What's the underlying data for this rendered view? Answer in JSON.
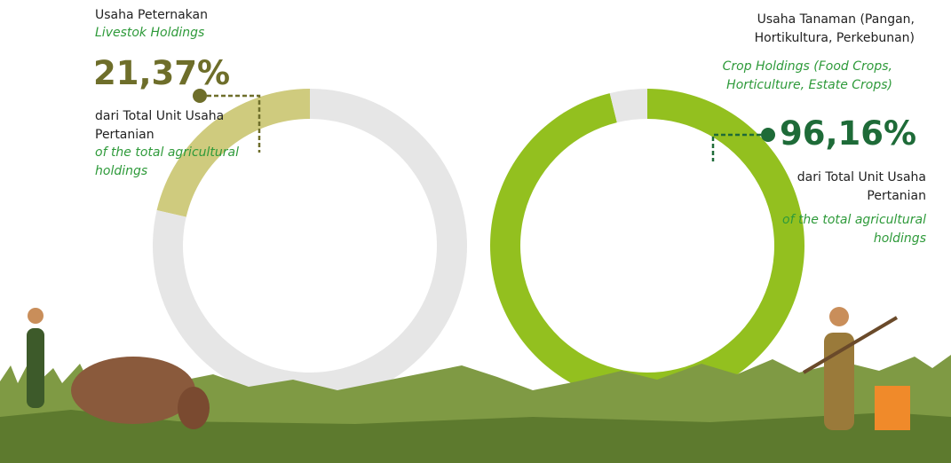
{
  "chart_data": [
    {
      "type": "donut",
      "title": "Usaha Peternakan",
      "subtitle": "Livestok Holdings",
      "values": [
        21.37,
        78.63
      ],
      "value_labels": [
        "21,37%",
        null
      ],
      "colors": [
        "#cfcb7e",
        "#e6e6e6"
      ],
      "clockwise": false,
      "note": "dari Total Unit Usaha Pertanian",
      "note_en": "of the total agricultural holdings"
    },
    {
      "type": "donut",
      "title": "Usaha Tanaman (Pangan, Hortikultura, Perkebunan)",
      "subtitle": "Crop Holdings (Food Crops, Horticulture, Estate Crops)",
      "values": [
        96.16,
        3.84
      ],
      "value_labels": [
        "96,16%",
        null
      ],
      "colors": [
        "#93c01f",
        "#e6e6e6"
      ],
      "clockwise": true,
      "note": "dari Total Unit Usaha Pertanian",
      "note_en": "of the total agricultural holdings"
    }
  ]
}
